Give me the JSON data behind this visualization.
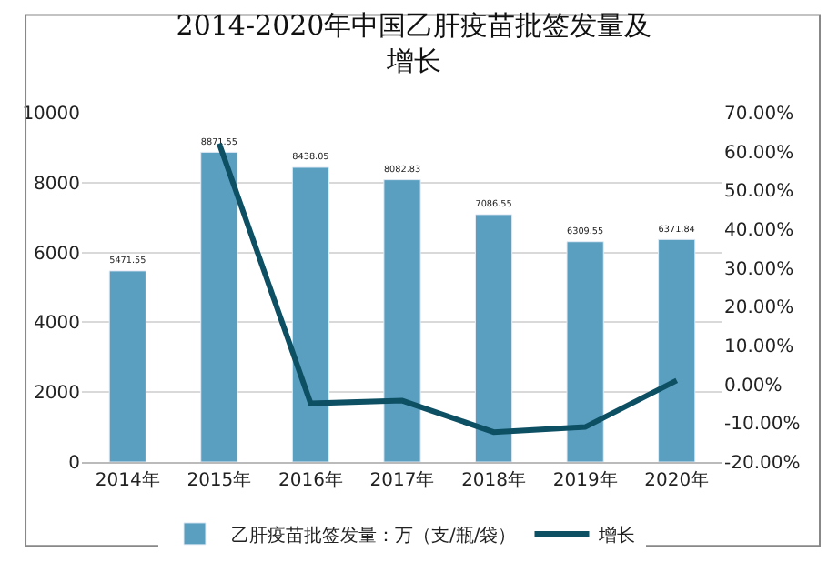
{
  "chart_data": {
    "type": "bar",
    "title": "2014-2020年中国乙肝疫苗批签发量及增长",
    "categories": [
      "2014年",
      "2015年",
      "2016年",
      "2017年",
      "2018年",
      "2019年",
      "2020年"
    ],
    "series": [
      {
        "name": "乙肝疫苗批签发量：万（支/瓶/袋）",
        "color": "#5a9fc0",
        "values": [
          5471.55,
          8871.55,
          8438.05,
          8082.83,
          7086.55,
          6309.55,
          6371.84
        ],
        "value_labels": [
          "5471.55",
          "8871.55",
          "8438.05",
          "8082.83",
          "7086.55",
          "6309.55",
          "6371.84"
        ]
      },
      {
        "name": "增长",
        "type": "line",
        "axis": "y2",
        "color": "#0d4f63",
        "values": [
          null,
          62.1,
          -4.9,
          -4.2,
          -12.3,
          -11.0,
          1.0
        ]
      }
    ],
    "ylim": [
      0,
      10000
    ],
    "yticks": [
      0,
      2000,
      4000,
      6000,
      8000,
      10000
    ],
    "y2lim": [
      -20,
      70
    ],
    "y2ticks": [
      {
        "value": -20,
        "label": "-20.00%"
      },
      {
        "value": -10,
        "label": "-10.00%"
      },
      {
        "value": 0,
        "label": "0.00%"
      },
      {
        "value": 10,
        "label": "10.00%"
      },
      {
        "value": 20,
        "label": "20.00%"
      },
      {
        "value": 30,
        "label": "30.00%"
      },
      {
        "value": 40,
        "label": "40.00%"
      },
      {
        "value": 50,
        "label": "50.00%"
      },
      {
        "value": 60,
        "label": "60.00%"
      },
      {
        "value": 70,
        "label": "70.00%"
      }
    ],
    "grid": "y",
    "legend": "bottom",
    "marker": "none",
    "line_style": "solid"
  }
}
